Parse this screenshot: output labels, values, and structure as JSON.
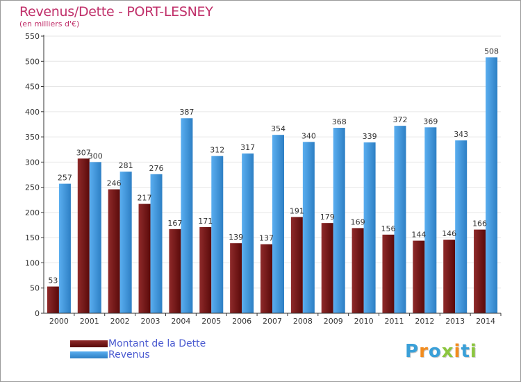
{
  "header": {
    "title": "Revenus/Dette - PORT-LESNEY",
    "subtitle": "(en milliers d'€)"
  },
  "colors": {
    "dette_top": "#8f2a2a",
    "dette_bottom": "#5a0a0a",
    "revenus_top": "#5aaef0",
    "revenus_bottom": "#2d7fc4",
    "axis": "#333333",
    "grid": "#e6e6e6",
    "title": "#c0306a",
    "legend_text": "#4a5ad0"
  },
  "legend": {
    "items": [
      {
        "label": "Montant de la Dette",
        "series": 0
      },
      {
        "label": "Revenus",
        "series": 1
      }
    ]
  },
  "logo": {
    "letters": [
      {
        "ch": "P",
        "color": "#3aa0d8"
      },
      {
        "ch": "r",
        "color": "#f28c1e"
      },
      {
        "ch": "o",
        "color": "#3aa0d8"
      },
      {
        "ch": "x",
        "color": "#8cc63f"
      },
      {
        "ch": "i",
        "color": "#f28c1e"
      },
      {
        "ch": "t",
        "color": "#3aa0d8"
      },
      {
        "ch": "i",
        "color": "#8cc63f"
      }
    ]
  },
  "chart_data": {
    "type": "bar",
    "title": "Revenus/Dette - PORT-LESNEY",
    "subtitle": "(en milliers d'€)",
    "xlabel": "",
    "ylabel": "",
    "ylim": [
      0,
      550
    ],
    "yticks": [
      0,
      50,
      100,
      150,
      200,
      250,
      300,
      350,
      400,
      450,
      500,
      550
    ],
    "grid": true,
    "legend_position": "bottom-left",
    "categories": [
      "2000",
      "2001",
      "2002",
      "2003",
      "2004",
      "2005",
      "2006",
      "2007",
      "2008",
      "2009",
      "2010",
      "2011",
      "2012",
      "2013",
      "2014"
    ],
    "series": [
      {
        "name": "Montant de la Dette",
        "values": [
          53,
          307,
          246,
          217,
          167,
          171,
          139,
          137,
          191,
          179,
          169,
          156,
          144,
          146,
          166
        ],
        "labels": [
          "53",
          "307",
          "246",
          "217",
          "167",
          "171",
          "139",
          "137",
          "191",
          "179",
          "169",
          "156",
          "144",
          "146",
          "166"
        ]
      },
      {
        "name": "Revenus",
        "values": [
          257,
          300,
          281,
          276,
          387,
          312,
          317,
          354,
          340,
          368,
          339,
          372,
          369,
          343,
          508
        ],
        "labels": [
          "257",
          "300",
          "281",
          "276",
          "387",
          "312",
          "317",
          "354",
          "340",
          "368",
          "339",
          "372",
          "369",
          "343",
          "508"
        ]
      }
    ]
  }
}
